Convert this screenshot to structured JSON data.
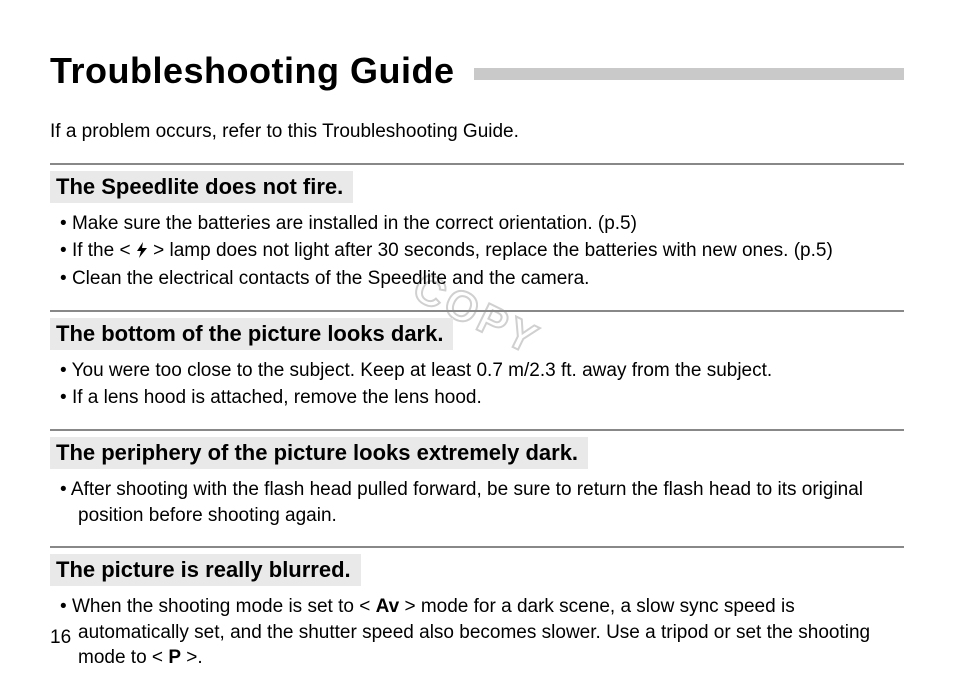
{
  "title": "Troubleshooting Guide",
  "intro": "If a problem occurs, refer to this Troubleshooting Guide.",
  "watermark": "COPY",
  "page_number": "16",
  "colors": {
    "title_rule": "#c9c9c9",
    "section_border": "#888888",
    "heading_bg": "#e9e9e9",
    "text": "#000000",
    "background": "#ffffff",
    "watermark_stroke": "#d0d0d0"
  },
  "typography": {
    "title_fontsize": 36,
    "heading_fontsize": 22,
    "body_fontsize": 19,
    "font_family": "Arial"
  },
  "sections": [
    {
      "heading": "The Speedlite does not fire.",
      "bullets": [
        {
          "pre": "Make sure the batteries are installed in the correct orientation. (p.5)"
        },
        {
          "pre": "If the <",
          "icon": "bolt",
          "post": "> lamp does not light after 30 seconds, replace the batteries with new ones. (p.5)"
        },
        {
          "pre": "Clean the electrical contacts of the Speedlite and the camera."
        }
      ]
    },
    {
      "heading": "The bottom of the picture looks dark.",
      "bullets": [
        {
          "pre": "You were too close to the subject. Keep at least 0.7 m/2.3 ft. away from the subject."
        },
        {
          "pre": "If a lens hood is attached, remove the lens hood."
        }
      ]
    },
    {
      "heading": "The periphery of the picture looks extremely dark.",
      "bullets": [
        {
          "pre": "After shooting with the flash head pulled forward, be sure to return the flash head to its original position before shooting again."
        }
      ]
    },
    {
      "heading": "The picture is really blurred.",
      "bullets": [
        {
          "pre": "When the shooting mode is set to <",
          "sym": "Av",
          "mid": "> mode for a dark scene, a slow sync speed is automatically set, and the shutter speed also becomes slower. Use a tripod or set the shooting mode to <",
          "sym2": "P",
          "post": ">."
        }
      ]
    }
  ]
}
